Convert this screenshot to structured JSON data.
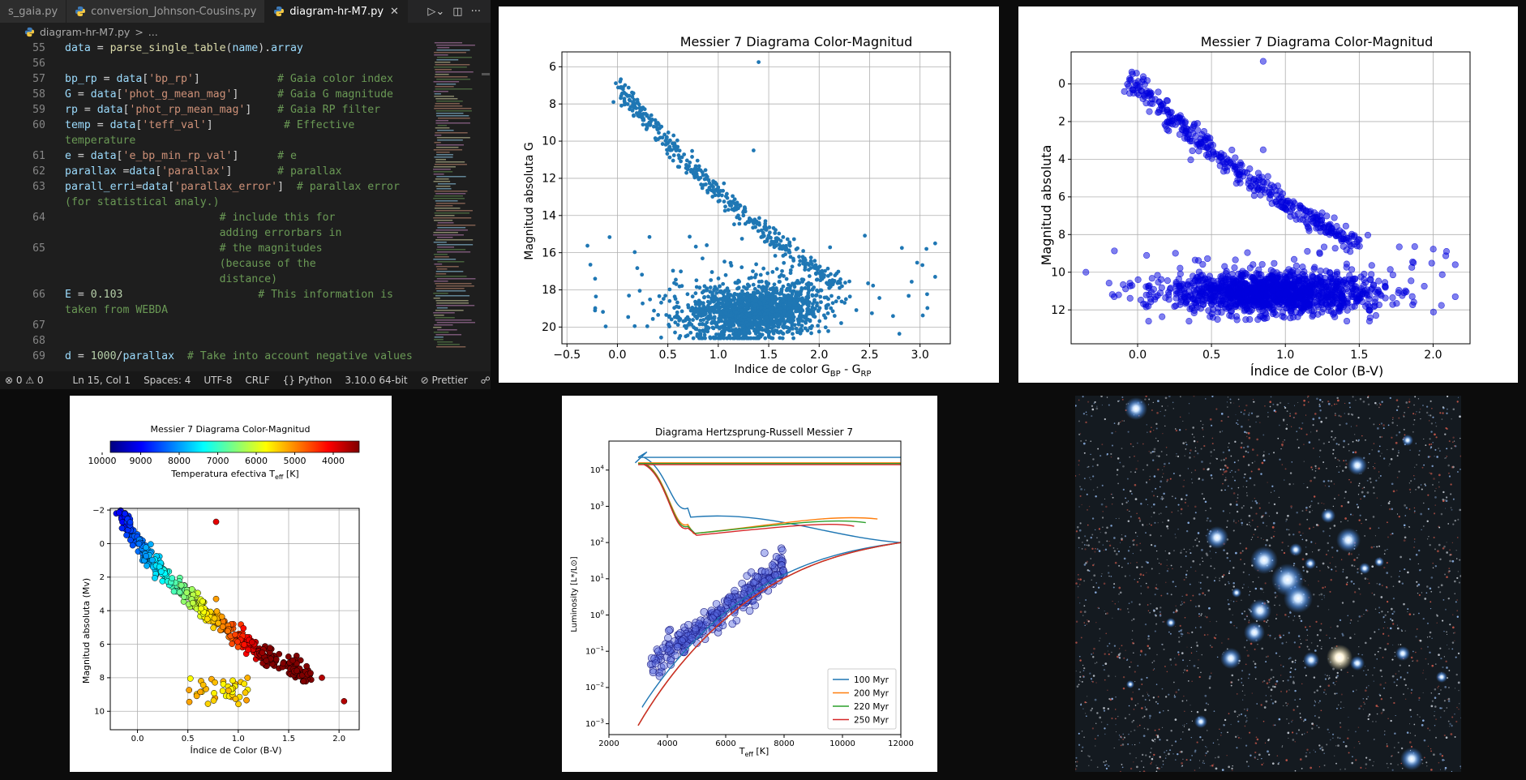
{
  "editor": {
    "tabs": [
      {
        "label": "s_gaia.py",
        "active": false
      },
      {
        "label": "conversion_Johnson-Cousins.py",
        "active": false
      },
      {
        "label": "diagram-hr-M7.py",
        "active": true
      }
    ],
    "breadcrumb": {
      "file": "diagram-hr-M7.py",
      "sep": ">",
      "rest": "..."
    },
    "lines": [
      {
        "n": "55",
        "parts": [
          [
            "v",
            "data"
          ],
          [
            "o",
            " = "
          ],
          [
            "f",
            "parse_single_table"
          ],
          [
            "o",
            "("
          ],
          [
            "v",
            "name"
          ],
          [
            "o",
            ")."
          ],
          [
            "v",
            "array"
          ]
        ]
      },
      {
        "n": "56",
        "parts": []
      },
      {
        "n": "57",
        "parts": [
          [
            "v",
            "bp_rp"
          ],
          [
            "o",
            " = "
          ],
          [
            "v",
            "data"
          ],
          [
            "o",
            "["
          ],
          [
            "s",
            "'bp_rp'"
          ],
          [
            "o",
            "]            "
          ],
          [
            "c",
            "# Gaia color index"
          ]
        ]
      },
      {
        "n": "58",
        "parts": [
          [
            "v",
            "G"
          ],
          [
            "o",
            " = "
          ],
          [
            "v",
            "data"
          ],
          [
            "o",
            "["
          ],
          [
            "s",
            "'phot_g_mean_mag'"
          ],
          [
            "o",
            "]      "
          ],
          [
            "c",
            "# Gaia G magnitude"
          ]
        ]
      },
      {
        "n": "59",
        "parts": [
          [
            "v",
            "rp"
          ],
          [
            "o",
            " = "
          ],
          [
            "v",
            "data"
          ],
          [
            "o",
            "["
          ],
          [
            "s",
            "'phot_rp_mean_mag'"
          ],
          [
            "o",
            "]    "
          ],
          [
            "c",
            "# Gaia RP filter"
          ]
        ]
      },
      {
        "n": "60",
        "parts": [
          [
            "v",
            "temp"
          ],
          [
            "o",
            " = "
          ],
          [
            "v",
            "data"
          ],
          [
            "o",
            "["
          ],
          [
            "s",
            "'teff_val'"
          ],
          [
            "o",
            "]           "
          ],
          [
            "c",
            "# Effective"
          ]
        ]
      },
      {
        "n": "",
        "parts": [
          [
            "c",
            "temperature"
          ]
        ]
      },
      {
        "n": "61",
        "parts": [
          [
            "v",
            "e"
          ],
          [
            "o",
            " = "
          ],
          [
            "v",
            "data"
          ],
          [
            "o",
            "["
          ],
          [
            "s",
            "'e_bp_min_rp_val'"
          ],
          [
            "o",
            "]      "
          ],
          [
            "c",
            "# e"
          ]
        ]
      },
      {
        "n": "62",
        "parts": [
          [
            "v",
            "parallax"
          ],
          [
            "o",
            " ="
          ],
          [
            "v",
            "data"
          ],
          [
            "o",
            "["
          ],
          [
            "s",
            "'parallax'"
          ],
          [
            "o",
            "]       "
          ],
          [
            "c",
            "# parallax"
          ]
        ]
      },
      {
        "n": "63",
        "parts": [
          [
            "v",
            "parall_erri"
          ],
          [
            "o",
            "="
          ],
          [
            "v",
            "data"
          ],
          [
            "o",
            "["
          ],
          [
            "s",
            "'parallax_error'"
          ],
          [
            "o",
            "]  "
          ],
          [
            "c",
            "# parallax error"
          ]
        ]
      },
      {
        "n": "",
        "parts": [
          [
            "c",
            "(for statistical analy.)"
          ]
        ]
      },
      {
        "n": "64",
        "parts": [
          [
            "o",
            "                        "
          ],
          [
            "c",
            "# include this for"
          ]
        ]
      },
      {
        "n": "",
        "parts": [
          [
            "o",
            "                        "
          ],
          [
            "c",
            "adding errorbars in"
          ]
        ]
      },
      {
        "n": "65",
        "parts": [
          [
            "o",
            "                        "
          ],
          [
            "c",
            "# the magnitudes"
          ]
        ]
      },
      {
        "n": "",
        "parts": [
          [
            "o",
            "                        "
          ],
          [
            "c",
            "(because of the"
          ]
        ]
      },
      {
        "n": "",
        "parts": [
          [
            "o",
            "                        "
          ],
          [
            "c",
            "distance)"
          ]
        ]
      },
      {
        "n": "66",
        "parts": [
          [
            "v",
            "E"
          ],
          [
            "o",
            " = "
          ],
          [
            "n",
            "0.103"
          ],
          [
            "o",
            "                     "
          ],
          [
            "c",
            "# This information is"
          ]
        ]
      },
      {
        "n": "",
        "parts": [
          [
            "c",
            "taken from WEBDA"
          ]
        ]
      },
      {
        "n": "67",
        "parts": []
      },
      {
        "n": "68",
        "parts": []
      },
      {
        "n": "69",
        "parts": [
          [
            "v",
            "d"
          ],
          [
            "o",
            " = "
          ],
          [
            "n",
            "1000"
          ],
          [
            "o",
            "/"
          ],
          [
            "v",
            "parallax"
          ],
          [
            "o",
            "  "
          ],
          [
            "c",
            "# Take into account negative values"
          ]
        ]
      }
    ],
    "status": {
      "errors": "0",
      "warnings": "0",
      "position": "Ln 15, Col 1",
      "spaces": "Spaces: 4",
      "encoding": "UTF-8",
      "eol": "CRLF",
      "language": "Python",
      "interpreter": "3.10.0 64-bit",
      "formatter": "Prettier"
    }
  },
  "plots": {
    "top_middle": {
      "title": "Messier 7 Diagrama Color-Magnitud",
      "xlabel_main": "Indice de color G",
      "xlabel_sub1": "BP",
      "xlabel_mid": " - G",
      "xlabel_sub2": "RP",
      "ylabel": "Magnitud absoluta G",
      "xticks": [
        "−0.5",
        "0.0",
        "0.5",
        "1.0",
        "1.5",
        "2.0",
        "2.5",
        "3.0"
      ],
      "yticks": [
        "6",
        "8",
        "10",
        "12",
        "14",
        "16",
        "18",
        "20"
      ],
      "color": "#1f77b4"
    },
    "top_right": {
      "title": "Messier 7 Diagrama Color-Magnitud",
      "xlabel": "Índice de Color (B-V)",
      "ylabel": "Magnitud absoluta",
      "xticks": [
        "0.0",
        "0.5",
        "1.0",
        "1.5",
        "2.0"
      ],
      "yticks": [
        "0",
        "2",
        "4",
        "6",
        "8",
        "10",
        "12"
      ],
      "color": "#0000dd"
    },
    "bottom_left": {
      "title": "Messier 7 Diagrama Color-Magnitud",
      "cbar_ticks": [
        "10000",
        "9000",
        "8000",
        "7000",
        "6000",
        "5000",
        "4000"
      ],
      "cbar_label_main": "Temperatura efectiva T",
      "cbar_label_sub": "eff",
      "cbar_label_end": " [K]",
      "xlabel": "Índice de Color (B-V)",
      "ylabel": "Magnitud absoluta (Mv)",
      "xticks": [
        "0.0",
        "0.5",
        "1.0",
        "1.5",
        "2.0"
      ],
      "yticks": [
        "−2",
        "0",
        "2",
        "4",
        "6",
        "8",
        "10"
      ]
    },
    "bottom_middle": {
      "title": "Diagrama Hertzsprung-Russell Messier 7",
      "xlabel_main": "T",
      "xlabel_sub": "eff",
      "xlabel_end": " [K]",
      "ylabel": "Luminosity [L*/L⊙]",
      "xticks": [
        "2000",
        "4000",
        "6000",
        "8000",
        "10000",
        "12000"
      ],
      "yticks": [
        {
          "base": "10",
          "exp": "4"
        },
        {
          "base": "10",
          "exp": "3"
        },
        {
          "base": "10",
          "exp": "2"
        },
        {
          "base": "10",
          "exp": "1"
        },
        {
          "base": "10",
          "exp": "0"
        },
        {
          "base": "10",
          "exp": "−1"
        },
        {
          "base": "10",
          "exp": "−2"
        },
        {
          "base": "10",
          "exp": "−3"
        }
      ],
      "legend": [
        {
          "label": "100 Myr",
          "color": "#1f77b4"
        },
        {
          "label": "200 Myr",
          "color": "#ff7f0e"
        },
        {
          "label": "220 Myr",
          "color": "#2ca02c"
        },
        {
          "label": "250 Myr",
          "color": "#d62728"
        }
      ]
    }
  }
}
